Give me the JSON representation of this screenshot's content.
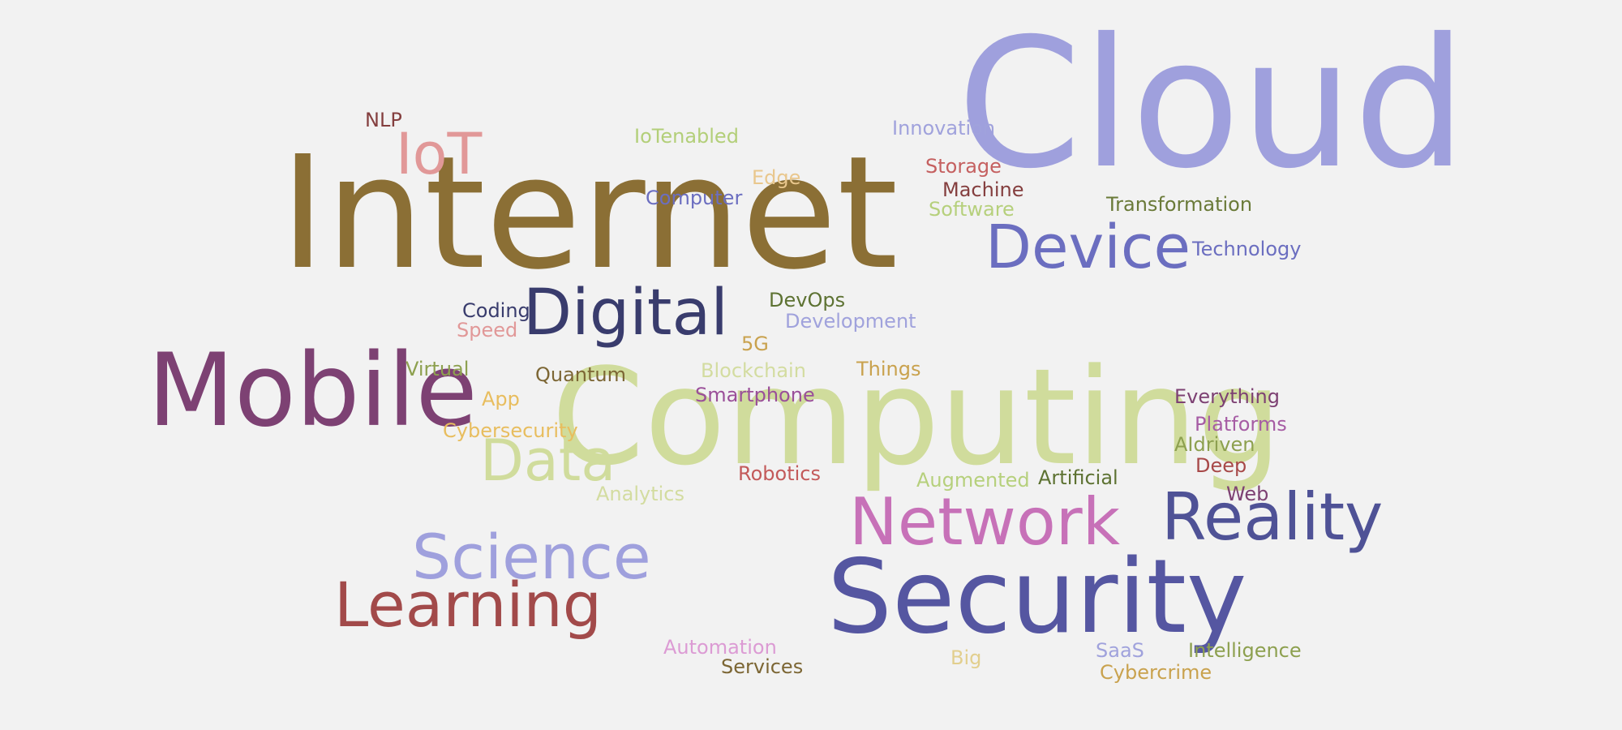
{
  "words": [
    {
      "text": "Cloud",
      "color": "#9fa0dd"
    },
    {
      "text": "Internet",
      "color": "#8b6f35"
    },
    {
      "text": "Computing",
      "color": "#d0dc9c"
    },
    {
      "text": "Mobile",
      "color": "#7d4173"
    },
    {
      "text": "Security",
      "color": "#5556a1"
    },
    {
      "text": "Network",
      "color": "#c771b8"
    },
    {
      "text": "Reality",
      "color": "#4f5296"
    },
    {
      "text": "Device",
      "color": "#6b6ec0"
    },
    {
      "text": "Digital",
      "color": "#393c6d"
    },
    {
      "text": "Science",
      "color": "#9fa0dd"
    },
    {
      "text": "Learning",
      "color": "#a24a4a"
    },
    {
      "text": "Data",
      "color": "#d0dc9c"
    },
    {
      "text": "IoT",
      "color": "#e19898"
    },
    {
      "text": "NLP",
      "color": "#843f3f"
    },
    {
      "text": "IoTenabled",
      "color": "#b3cf79"
    },
    {
      "text": "Innovation",
      "color": "#a0a2dc"
    },
    {
      "text": "Storage",
      "color": "#c56060"
    },
    {
      "text": "Machine",
      "color": "#843e3e"
    },
    {
      "text": "Software",
      "color": "#b6d07c"
    },
    {
      "text": "Edge",
      "color": "#e9c78d"
    },
    {
      "text": "Computer",
      "color": "#6b6ec0"
    },
    {
      "text": "Transformation",
      "color": "#6a7a38"
    },
    {
      "text": "Technology",
      "color": "#6b6ec0"
    },
    {
      "text": "Coding",
      "color": "#393c6d"
    },
    {
      "text": "Speed",
      "color": "#e19898"
    },
    {
      "text": "DevOps",
      "color": "#5d7232"
    },
    {
      "text": "Development",
      "color": "#a0a2dc"
    },
    {
      "text": "5G",
      "color": "#c9a24e"
    },
    {
      "text": "Virtual",
      "color": "#8da04f"
    },
    {
      "text": "Quantum",
      "color": "#7c6634"
    },
    {
      "text": "Blockchain",
      "color": "#d3dca0"
    },
    {
      "text": "Things",
      "color": "#c9a24e"
    },
    {
      "text": "App",
      "color": "#e8bd5e"
    },
    {
      "text": "Smartphone",
      "color": "#9a4f99"
    },
    {
      "text": "Everything",
      "color": "#7d4173"
    },
    {
      "text": "Platforms",
      "color": "#a65ca4"
    },
    {
      "text": "Cybersecurity",
      "color": "#e8bd5e"
    },
    {
      "text": "AIdriven",
      "color": "#8da04f"
    },
    {
      "text": "Deep",
      "color": "#a74848"
    },
    {
      "text": "Robotics",
      "color": "#c35a5a"
    },
    {
      "text": "Augmented",
      "color": "#b6d07c"
    },
    {
      "text": "Artificial",
      "color": "#5d7232"
    },
    {
      "text": "Web",
      "color": "#7d4173"
    },
    {
      "text": "Analytics",
      "color": "#d3dca0"
    },
    {
      "text": "Automation",
      "color": "#dc9bd4"
    },
    {
      "text": "Services",
      "color": "#7c6634"
    },
    {
      "text": "Big",
      "color": "#e2cf8e"
    },
    {
      "text": "SaaS",
      "color": "#a0a2dc"
    },
    {
      "text": "Intelligence",
      "color": "#8da04f"
    },
    {
      "text": "Cybercrime",
      "color": "#c9a24e"
    }
  ]
}
